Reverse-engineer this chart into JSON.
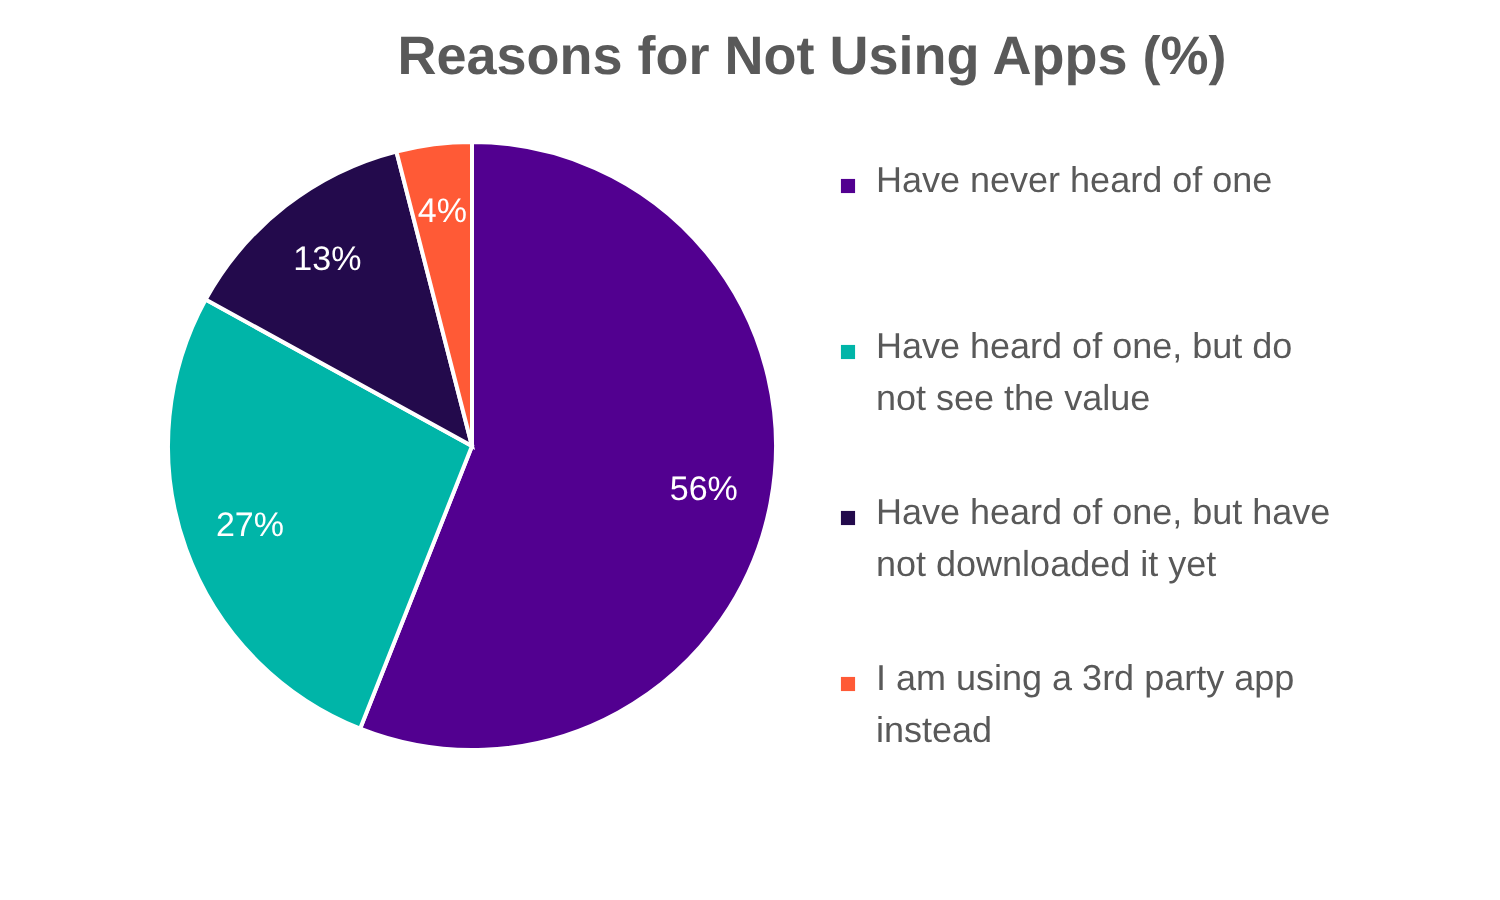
{
  "chart_data": {
    "type": "pie",
    "title": "Reasons for Not Using Apps (%)",
    "categories": [
      "Have never heard of one",
      "Have heard of one, but do not see the value",
      "Have heard of one, but have not downloaded it yet",
      "I am using a 3rd party app instead"
    ],
    "values": [
      56,
      27,
      13,
      4
    ],
    "colors": [
      "#520090",
      "#00b5a8",
      "#230a4c",
      "#ff5a36"
    ],
    "value_labels": [
      "56%",
      "27%",
      "13%",
      "4%"
    ],
    "legend": "right"
  }
}
